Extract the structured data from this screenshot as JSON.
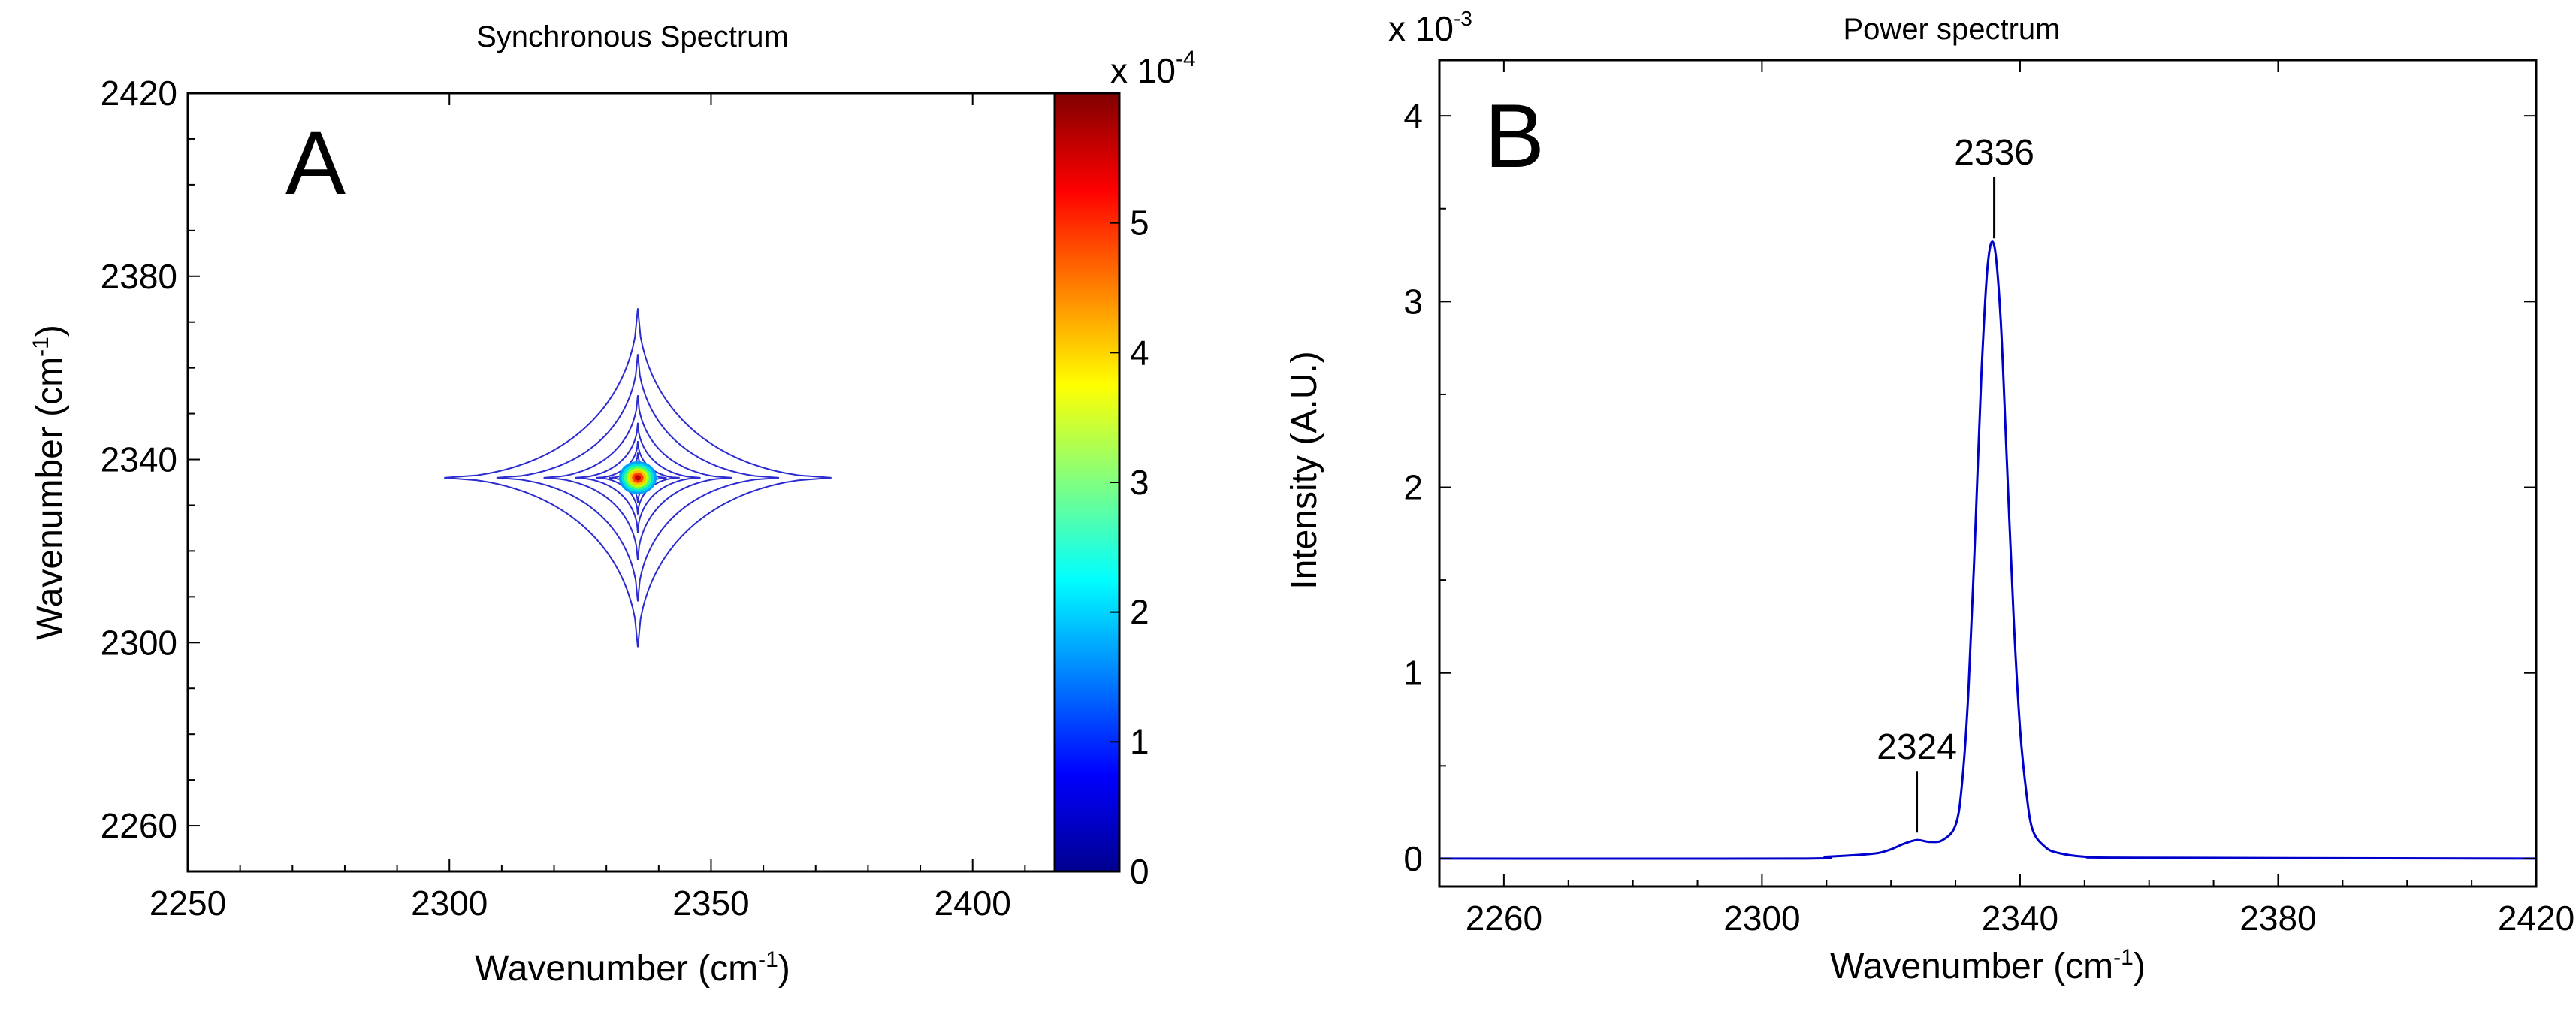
{
  "chart_data": [
    {
      "panel": "A",
      "type": "heatmap",
      "subtype": "contour",
      "title": "Synchronous Spectrum",
      "xlabel": "Wavenumber (cm",
      "ylabel": "Wavenumber (cm",
      "unit_superscript": "-1",
      "xlim": [
        2250,
        2420
      ],
      "ylim": [
        2250,
        2420
      ],
      "xticks": [
        2250,
        2300,
        2350,
        2400
      ],
      "yticks": [
        2260,
        2300,
        2340,
        2380,
        2420
      ],
      "peak": {
        "x": 2336,
        "y": 2336
      },
      "contour_levels": 6,
      "colorbar": {
        "label": "x 10",
        "label_exponent": "-4",
        "min": 0,
        "max": 6,
        "ticks": [
          0,
          1,
          2,
          3,
          4,
          5
        ],
        "colors": [
          "#00008f",
          "#0000ff",
          "#0080ff",
          "#00ffff",
          "#80ff80",
          "#ffff00",
          "#ff8000",
          "#ff0000",
          "#800000"
        ]
      }
    },
    {
      "panel": "B",
      "type": "line",
      "title": "Power spectrum",
      "xlabel": "Wavenumber (cm",
      "ylabel": "Intensity (A.U.)",
      "unit_superscript": "-1",
      "y_multiplier": "x 10",
      "y_multiplier_exponent": "-3",
      "xlim": [
        2250,
        2420
      ],
      "ylim": [
        -0.15,
        4.3
      ],
      "xticks": [
        2260,
        2300,
        2340,
        2380,
        2420
      ],
      "yticks": [
        0,
        1,
        2,
        3,
        4
      ],
      "series": [
        {
          "name": "Power spectrum",
          "color": "#0000cc",
          "x": [
            2250,
            2305,
            2310,
            2315,
            2318,
            2320,
            2322,
            2324,
            2326,
            2328,
            2330,
            2331,
            2332,
            2333,
            2334,
            2335,
            2336,
            2337,
            2338,
            2339,
            2340,
            2341,
            2342,
            2344,
            2346,
            2350,
            2358,
            2420
          ],
          "y": [
            0,
            0,
            0.01,
            0.02,
            0.03,
            0.05,
            0.08,
            0.1,
            0.09,
            0.1,
            0.18,
            0.4,
            0.9,
            1.7,
            2.6,
            3.2,
            3.3,
            2.9,
            2.1,
            1.3,
            0.7,
            0.35,
            0.15,
            0.06,
            0.03,
            0.01,
            0.005,
            0
          ]
        }
      ],
      "annotations": [
        {
          "text": "2336",
          "x": 2336,
          "y": 3.3
        },
        {
          "text": "2324",
          "x": 2324,
          "y": 0.1
        }
      ]
    }
  ]
}
